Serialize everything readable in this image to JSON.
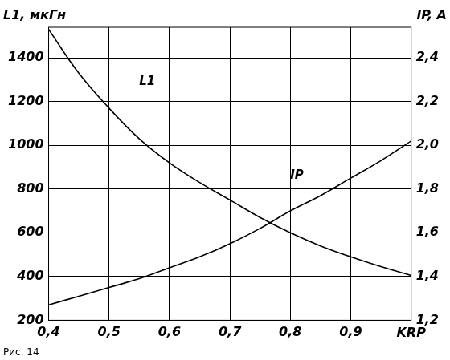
{
  "chart_data": {
    "type": "line",
    "title": "Рис. 14",
    "x_label": "KRP",
    "y_label": "L1, мкГн",
    "y2_label": "IP, A",
    "x": [
      0.4,
      0.45,
      0.5,
      0.55,
      0.6,
      0.65,
      0.7,
      0.75,
      0.8,
      0.85,
      0.9,
      0.95,
      1.0
    ],
    "series": [
      {
        "name": "L1",
        "color": "#000000",
        "values": [
          1530,
          1330,
          1170,
          1030,
          920,
          830,
          750,
          670,
          600,
          540,
          490,
          445,
          405
        ]
      },
      {
        "name": "IP",
        "color": "#000000",
        "axis": "y2",
        "values": [
          1.27,
          1.31,
          1.35,
          1.39,
          1.44,
          1.49,
          1.55,
          1.62,
          1.7,
          1.77,
          1.85,
          1.93,
          2.02
        ]
      }
    ],
    "xlim": [
      0.4,
      1.0
    ],
    "xticks": [
      {
        "value": 0.4,
        "label": "0,4"
      },
      {
        "value": 0.5,
        "label": "0,5"
      },
      {
        "value": 0.6,
        "label": "0,6"
      },
      {
        "value": 0.7,
        "label": "0,7"
      },
      {
        "value": 0.8,
        "label": "0,8"
      },
      {
        "value": 0.9,
        "label": "0,9"
      }
    ],
    "ylim": [
      200,
      1540
    ],
    "yticks": [
      200,
      400,
      600,
      800,
      1000,
      1200,
      1400
    ],
    "y2lim": [
      1.2,
      2.54
    ],
    "y2ticks": [
      {
        "value": 1.2,
        "label": "1,2"
      },
      {
        "value": 1.4,
        "label": "1,4"
      },
      {
        "value": 1.6,
        "label": "1,6"
      },
      {
        "value": 1.8,
        "label": "1,8"
      },
      {
        "value": 2.0,
        "label": "2,0"
      },
      {
        "value": 2.2,
        "label": "2,2"
      },
      {
        "value": 2.4,
        "label": "2,4"
      }
    ],
    "grid": true,
    "annotations": [
      {
        "text": "L1",
        "x": 0.55,
        "y": 1290
      },
      {
        "text": "IP",
        "x": 0.8,
        "y": 1.86,
        "axis": "y2"
      }
    ]
  }
}
